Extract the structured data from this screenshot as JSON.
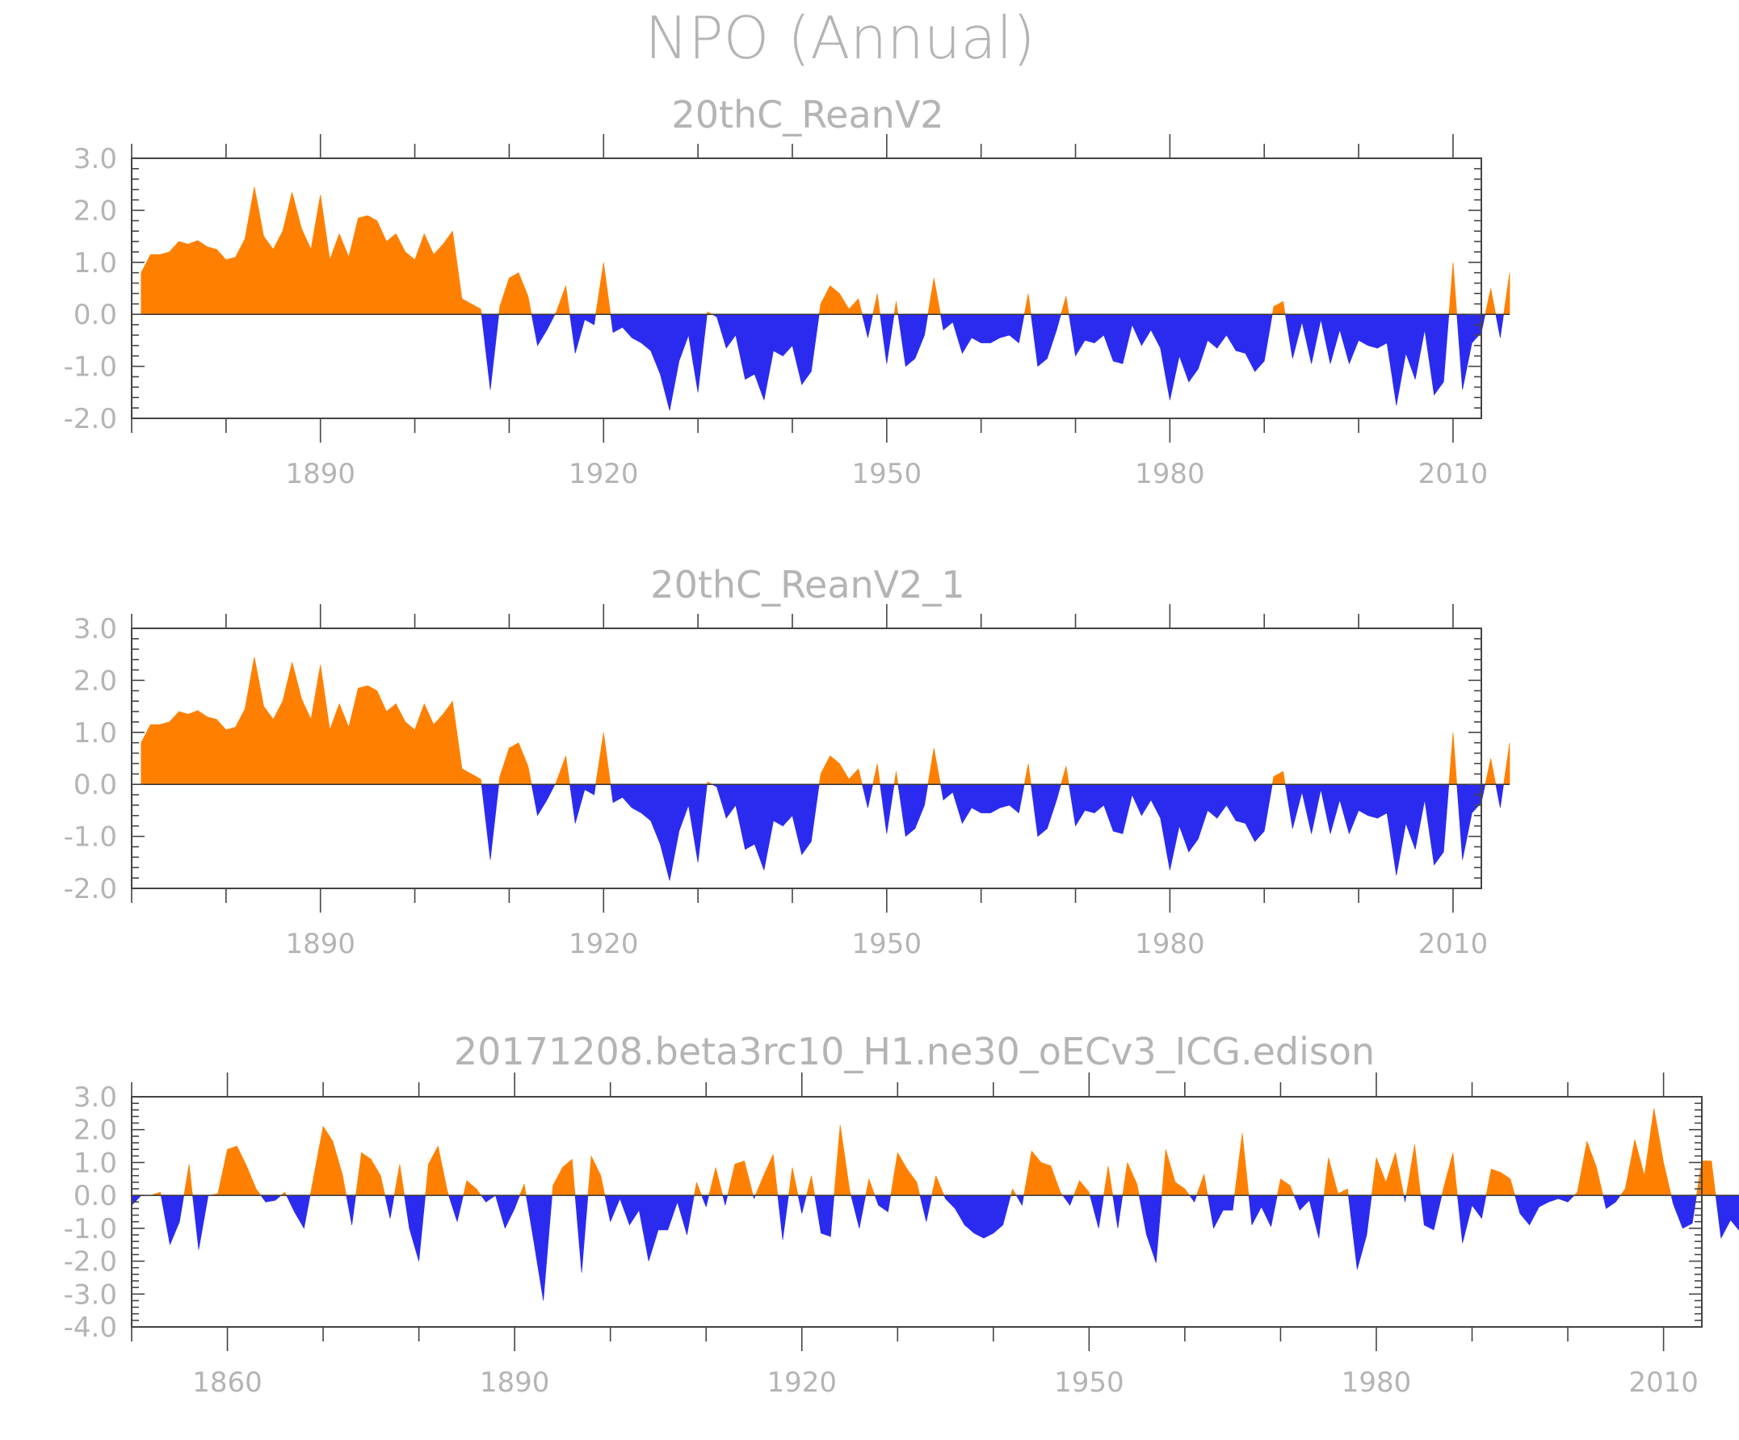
{
  "figure": {
    "title": "NPO (Annual)",
    "colors": {
      "positive": "#ff8000",
      "negative": "#2b2bf0",
      "text": "#b4b4b4",
      "axis": "#444444"
    }
  },
  "chart_data": [
    {
      "type": "area",
      "title": "20thC_ReanV2",
      "xlabel": "",
      "ylabel": "",
      "xlim": [
        1870,
        2013
      ],
      "ylim": [
        -2.0,
        3.0
      ],
      "x_ticks": [
        "1890",
        "1920",
        "1950",
        "1980",
        "2010"
      ],
      "y_ticks": [
        "3.0",
        "2.0",
        "1.0",
        "0.0",
        "-1.0",
        "-2.0"
      ],
      "x_start": 1871,
      "values": [
        0.8,
        1.15,
        1.15,
        1.2,
        1.4,
        1.35,
        1.42,
        1.3,
        1.25,
        1.05,
        1.1,
        1.45,
        2.45,
        1.5,
        1.25,
        1.6,
        2.35,
        1.65,
        1.25,
        2.3,
        1.05,
        1.55,
        1.1,
        1.85,
        1.9,
        1.8,
        1.4,
        1.55,
        1.2,
        1.05,
        1.55,
        1.15,
        1.35,
        1.6,
        0.3,
        0.2,
        0.1,
        -1.45,
        0.15,
        0.7,
        0.8,
        0.35,
        -0.6,
        -0.3,
        0.05,
        0.55,
        -0.75,
        -0.1,
        -0.2,
        1.0,
        -0.35,
        -0.25,
        -0.45,
        -0.55,
        -0.7,
        -1.15,
        -1.85,
        -0.9,
        -0.4,
        -1.5,
        0.05,
        -0.05,
        -0.65,
        -0.4,
        -1.25,
        -1.15,
        -1.65,
        -0.7,
        -0.8,
        -0.6,
        -1.35,
        -1.1,
        0.2,
        0.55,
        0.4,
        0.1,
        0.3,
        -0.45,
        0.4,
        -0.95,
        0.25,
        -1.0,
        -0.85,
        -0.4,
        0.7,
        -0.3,
        -0.15,
        -0.75,
        -0.45,
        -0.55,
        -0.55,
        -0.45,
        -0.4,
        -0.55,
        0.4,
        -1.0,
        -0.85,
        -0.3,
        0.35,
        -0.8,
        -0.5,
        -0.55,
        -0.4,
        -0.9,
        -0.95,
        -0.2,
        -0.6,
        -0.3,
        -0.65,
        -1.65,
        -0.8,
        -1.3,
        -1.05,
        -0.5,
        -0.65,
        -0.4,
        -0.7,
        -0.75,
        -1.1,
        -0.9,
        0.15,
        0.25,
        -0.85,
        -0.15,
        -0.95,
        -0.1,
        -0.95,
        -0.3,
        -0.95,
        -0.5,
        -0.6,
        -0.65,
        -0.55,
        -1.75,
        -0.75,
        -1.25,
        -0.3,
        -1.55,
        -1.3,
        1.0,
        -1.45,
        -0.55,
        -0.35,
        0.5,
        -0.45,
        0.8
      ]
    },
    {
      "type": "area",
      "title": "20thC_ReanV2_1",
      "xlabel": "",
      "ylabel": "",
      "xlim": [
        1870,
        2013
      ],
      "ylim": [
        -2.0,
        3.0
      ],
      "x_ticks": [
        "1890",
        "1920",
        "1950",
        "1980",
        "2010"
      ],
      "y_ticks": [
        "3.0",
        "2.0",
        "1.0",
        "0.0",
        "-1.0",
        "-2.0"
      ],
      "x_start": 1871,
      "values": [
        0.8,
        1.15,
        1.15,
        1.2,
        1.4,
        1.35,
        1.42,
        1.3,
        1.25,
        1.05,
        1.1,
        1.45,
        2.45,
        1.5,
        1.25,
        1.6,
        2.35,
        1.65,
        1.25,
        2.3,
        1.05,
        1.55,
        1.1,
        1.85,
        1.9,
        1.8,
        1.4,
        1.55,
        1.2,
        1.05,
        1.55,
        1.15,
        1.35,
        1.6,
        0.3,
        0.2,
        0.1,
        -1.45,
        0.15,
        0.7,
        0.8,
        0.35,
        -0.6,
        -0.3,
        0.05,
        0.55,
        -0.75,
        -0.1,
        -0.2,
        1.0,
        -0.35,
        -0.25,
        -0.45,
        -0.55,
        -0.7,
        -1.15,
        -1.85,
        -0.9,
        -0.4,
        -1.5,
        0.05,
        -0.05,
        -0.65,
        -0.4,
        -1.25,
        -1.15,
        -1.65,
        -0.7,
        -0.8,
        -0.6,
        -1.35,
        -1.1,
        0.2,
        0.55,
        0.4,
        0.1,
        0.3,
        -0.45,
        0.4,
        -0.95,
        0.25,
        -1.0,
        -0.85,
        -0.4,
        0.7,
        -0.3,
        -0.15,
        -0.75,
        -0.45,
        -0.55,
        -0.55,
        -0.45,
        -0.4,
        -0.55,
        0.4,
        -1.0,
        -0.85,
        -0.3,
        0.35,
        -0.8,
        -0.5,
        -0.55,
        -0.4,
        -0.9,
        -0.95,
        -0.2,
        -0.6,
        -0.3,
        -0.65,
        -1.65,
        -0.8,
        -1.3,
        -1.05,
        -0.5,
        -0.65,
        -0.4,
        -0.7,
        -0.75,
        -1.1,
        -0.9,
        0.15,
        0.25,
        -0.85,
        -0.15,
        -0.95,
        -0.1,
        -0.95,
        -0.3,
        -0.95,
        -0.5,
        -0.6,
        -0.65,
        -0.55,
        -1.75,
        -0.75,
        -1.25,
        -0.3,
        -1.55,
        -1.3,
        1.0,
        -1.45,
        -0.55,
        -0.35,
        0.5,
        -0.45,
        0.8
      ]
    },
    {
      "type": "area",
      "title": "20171208.beta3rc10_H1.ne30_oECv3_ICG.edison",
      "xlabel": "",
      "ylabel": "",
      "xlim": [
        1850,
        2014
      ],
      "ylim": [
        -4.0,
        3.0
      ],
      "x_ticks": [
        "1860",
        "1890",
        "1920",
        "1950",
        "1980",
        "2010"
      ],
      "y_ticks": [
        "3.0",
        "2.0",
        "1.0",
        "0.0",
        "-1.0",
        "-2.0",
        "-3.0",
        "-4.0"
      ],
      "x_start": 1850,
      "values": [
        -0.3,
        0.0,
        0.0,
        0.1,
        -1.5,
        -0.8,
        0.95,
        -1.65,
        0.0,
        0.05,
        1.4,
        1.5,
        0.9,
        0.2,
        -0.2,
        -0.15,
        0.1,
        -0.5,
        -1.0,
        0.55,
        2.1,
        1.65,
        0.65,
        -0.9,
        1.3,
        1.1,
        0.6,
        -0.7,
        0.95,
        -1.0,
        -2.0,
        0.95,
        1.5,
        0.1,
        -0.8,
        0.45,
        0.2,
        -0.2,
        0.0,
        -1.0,
        -0.4,
        0.35,
        -1.4,
        -3.2,
        0.3,
        0.85,
        1.1,
        -2.35,
        1.2,
        0.6,
        -0.8,
        -0.1,
        -0.9,
        -0.45,
        -2.0,
        -1.05,
        -1.05,
        -0.2,
        -1.2,
        0.4,
        -0.35,
        0.85,
        -0.3,
        0.95,
        1.05,
        -0.1,
        0.6,
        1.25,
        -1.35,
        0.85,
        -0.55,
        0.6,
        -1.15,
        -1.25,
        2.15,
        0.15,
        -1.0,
        0.5,
        -0.3,
        -0.5,
        1.3,
        0.8,
        0.4,
        -0.8,
        0.6,
        -0.1,
        -0.4,
        -0.9,
        -1.15,
        -1.3,
        -1.15,
        -0.9,
        0.2,
        -0.3,
        1.35,
        1.0,
        0.9,
        0.1,
        -0.3,
        0.45,
        0.1,
        -1.0,
        0.9,
        -1.0,
        1.0,
        0.35,
        -1.2,
        -2.05,
        1.4,
        0.4,
        0.2,
        -0.2,
        0.65,
        -1.0,
        -0.45,
        -0.45,
        1.9,
        -0.9,
        -0.35,
        -0.95,
        0.5,
        0.3,
        -0.45,
        -0.15,
        -1.3,
        1.15,
        0.05,
        0.2,
        -2.25,
        -1.2,
        1.15,
        0.4,
        1.3,
        -0.2,
        1.55,
        -0.9,
        -1.05,
        0.2,
        1.3,
        -1.45,
        -0.3,
        -0.7,
        0.8,
        0.7,
        0.5,
        -0.55,
        -0.9,
        -0.35,
        -0.2,
        -0.1,
        -0.2,
        0.1,
        1.65,
        0.85,
        -0.4,
        -0.2,
        0.2,
        1.7,
        0.6,
        2.65,
        1.0,
        -0.25,
        -1.0,
        -0.85,
        1.05,
        1.05,
        -1.3,
        -0.75,
        -1.1
      ]
    }
  ]
}
